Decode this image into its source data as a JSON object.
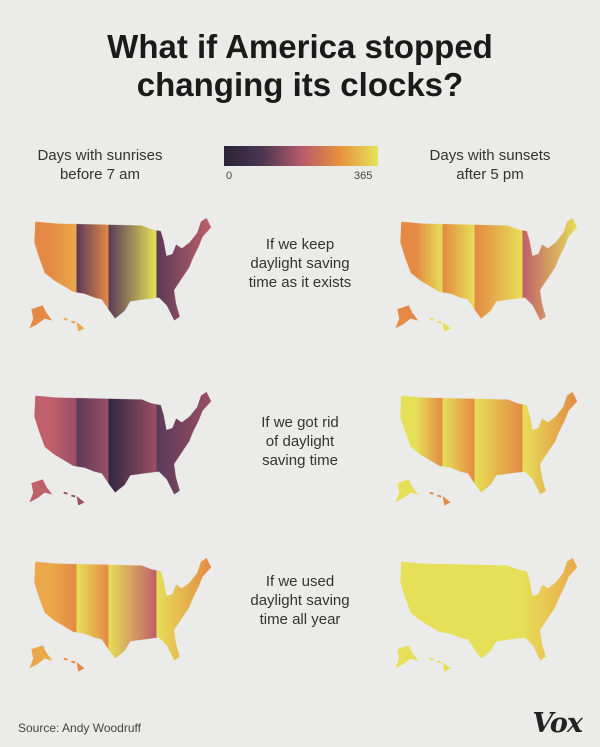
{
  "title_line1": "What if America stopped",
  "title_line2": "changing its clocks?",
  "legend": {
    "left_label_1": "Days with sunrises",
    "left_label_2": "before 7 am",
    "right_label_1": "Days with sunsets",
    "right_label_2": "after 5 pm",
    "min": "0",
    "max": "365",
    "colors": [
      "#2a2438",
      "#4a3550",
      "#b65a6a",
      "#e8903f",
      "#e6e35a"
    ]
  },
  "scenarios": [
    {
      "caption": [
        "If we keep",
        "daylight saving",
        "time as it exists"
      ]
    },
    {
      "caption": [
        "If we got rid",
        "of daylight",
        "saving time"
      ]
    },
    {
      "caption": [
        "If we used",
        "daylight saving",
        "time all year"
      ]
    }
  ],
  "source": "Source: Andy Woodruff",
  "logo": "Vox"
}
